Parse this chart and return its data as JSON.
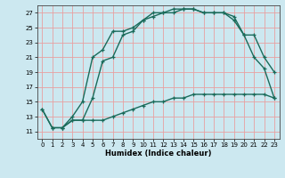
{
  "xlabel": "Humidex (Indice chaleur)",
  "bg_color": "#cce8f0",
  "grid_color": "#e8a0a0",
  "line_color": "#1a6b5a",
  "xlim": [
    -0.5,
    23.5
  ],
  "ylim": [
    10.0,
    28.0
  ],
  "yticks": [
    11,
    13,
    15,
    17,
    19,
    21,
    23,
    25,
    27
  ],
  "xticks": [
    0,
    1,
    2,
    3,
    4,
    5,
    6,
    7,
    8,
    9,
    10,
    11,
    12,
    13,
    14,
    15,
    16,
    17,
    18,
    19,
    20,
    21,
    22,
    23
  ],
  "line1_x": [
    0,
    1,
    2,
    3,
    4,
    5,
    6,
    7,
    8,
    9,
    10,
    11,
    12,
    13,
    14,
    15,
    16,
    17,
    18,
    19,
    20,
    21,
    22,
    23
  ],
  "line1_y": [
    14.0,
    11.5,
    11.5,
    12.5,
    12.5,
    12.5,
    12.5,
    13.0,
    13.5,
    14.0,
    14.5,
    15.0,
    15.0,
    15.5,
    15.5,
    16.0,
    16.0,
    16.0,
    16.0,
    16.0,
    16.0,
    16.0,
    16.0,
    15.5
  ],
  "line2_x": [
    0,
    1,
    2,
    3,
    4,
    5,
    6,
    7,
    8,
    9,
    10,
    11,
    12,
    13,
    14,
    15,
    16,
    17,
    18,
    19,
    20,
    21,
    22,
    23
  ],
  "line2_y": [
    14.0,
    11.5,
    11.5,
    13.0,
    15.0,
    21.0,
    22.0,
    24.5,
    24.5,
    25.0,
    26.0,
    26.5,
    27.0,
    27.0,
    27.5,
    27.5,
    27.0,
    27.0,
    27.0,
    26.0,
    24.0,
    21.0,
    19.5,
    15.5
  ],
  "line3_x": [
    2,
    3,
    4,
    5,
    6,
    7,
    8,
    9,
    10,
    11,
    12,
    13,
    14,
    15,
    16,
    17,
    18,
    19,
    20,
    21,
    22,
    23
  ],
  "line3_y": [
    11.5,
    12.5,
    12.5,
    15.5,
    20.5,
    21.0,
    24.0,
    24.5,
    26.0,
    27.0,
    27.0,
    27.5,
    27.5,
    27.5,
    27.0,
    27.0,
    27.0,
    26.5,
    24.0,
    24.0,
    21.0,
    19.0
  ]
}
